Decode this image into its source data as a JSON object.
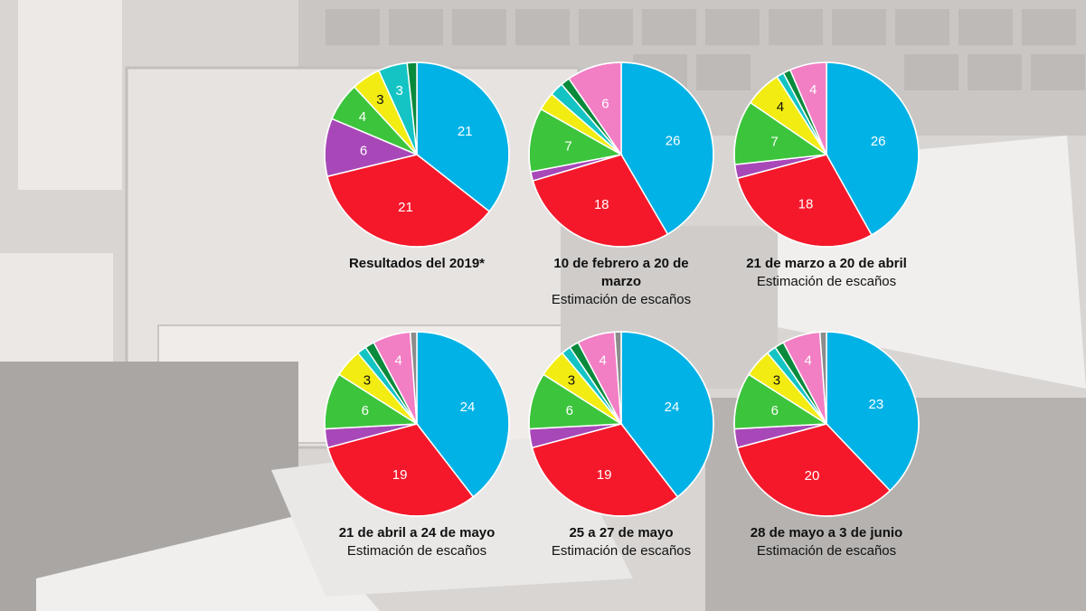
{
  "colors": {
    "cyan": "#00b2e6",
    "red": "#f5182a",
    "purple": "#a848b8",
    "green": "#3cc43c",
    "yellow": "#f2ec12",
    "teal": "#14c4c4",
    "darkgreen": "#0a8a3c",
    "pink": "#f27ec4",
    "gray": "#8c8c8c"
  },
  "chart_data": [
    {
      "type": "pie",
      "title": "Resultados del 2019*",
      "subtitle": "",
      "slices": [
        {
          "value": 21,
          "label": "21",
          "color": "cyan"
        },
        {
          "value": 21,
          "label": "21",
          "color": "red"
        },
        {
          "value": 6,
          "label": "6",
          "color": "purple"
        },
        {
          "value": 4,
          "label": "4",
          "color": "green"
        },
        {
          "value": 3,
          "label": "3",
          "color": "yellow"
        },
        {
          "value": 3,
          "label": "3",
          "color": "teal"
        },
        {
          "value": 1,
          "label": "",
          "color": "darkgreen"
        }
      ]
    },
    {
      "type": "pie",
      "title": "10 de febrero a 20 de marzo",
      "subtitle": "Estimación de escaños",
      "slices": [
        {
          "value": 26,
          "label": "26",
          "color": "cyan"
        },
        {
          "value": 18,
          "label": "18",
          "color": "red"
        },
        {
          "value": 1,
          "label": "",
          "color": "purple"
        },
        {
          "value": 7,
          "label": "7",
          "color": "green"
        },
        {
          "value": 2,
          "label": "",
          "color": "yellow"
        },
        {
          "value": 1.5,
          "label": "",
          "color": "teal"
        },
        {
          "value": 1,
          "label": "",
          "color": "darkgreen"
        },
        {
          "value": 6,
          "label": "6",
          "color": "pink"
        }
      ]
    },
    {
      "type": "pie",
      "title": "21 de marzo a 20 de abril",
      "subtitle": "Estimación de escaños",
      "slices": [
        {
          "value": 26,
          "label": "26",
          "color": "cyan"
        },
        {
          "value": 18,
          "label": "18",
          "color": "red"
        },
        {
          "value": 1.5,
          "label": "",
          "color": "purple"
        },
        {
          "value": 7,
          "label": "7",
          "color": "green"
        },
        {
          "value": 4,
          "label": "4",
          "color": "yellow"
        },
        {
          "value": 0.8,
          "label": "",
          "color": "teal"
        },
        {
          "value": 0.8,
          "label": "",
          "color": "darkgreen"
        },
        {
          "value": 4,
          "label": "4",
          "color": "pink"
        }
      ]
    },
    {
      "type": "pie",
      "title": "21 de abril a 24 de mayo",
      "subtitle": "Estimación de escaños",
      "slices": [
        {
          "value": 24,
          "label": "24",
          "color": "cyan"
        },
        {
          "value": 19,
          "label": "19",
          "color": "red"
        },
        {
          "value": 2,
          "label": "",
          "color": "purple"
        },
        {
          "value": 6,
          "label": "6",
          "color": "green"
        },
        {
          "value": 3,
          "label": "3",
          "color": "yellow"
        },
        {
          "value": 1,
          "label": "",
          "color": "teal"
        },
        {
          "value": 1,
          "label": "",
          "color": "darkgreen"
        },
        {
          "value": 4,
          "label": "4",
          "color": "pink"
        },
        {
          "value": 0.7,
          "label": "",
          "color": "gray"
        }
      ]
    },
    {
      "type": "pie",
      "title": "25 a 27 de mayo",
      "subtitle": "Estimación de escaños",
      "slices": [
        {
          "value": 24,
          "label": "24",
          "color": "cyan"
        },
        {
          "value": 19,
          "label": "19",
          "color": "red"
        },
        {
          "value": 2,
          "label": "",
          "color": "purple"
        },
        {
          "value": 6,
          "label": "6",
          "color": "green"
        },
        {
          "value": 3,
          "label": "3",
          "color": "yellow"
        },
        {
          "value": 1,
          "label": "",
          "color": "teal"
        },
        {
          "value": 1,
          "label": "",
          "color": "darkgreen"
        },
        {
          "value": 4,
          "label": "4",
          "color": "pink"
        },
        {
          "value": 0.7,
          "label": "",
          "color": "gray"
        }
      ]
    },
    {
      "type": "pie",
      "title": "28 de mayo a 3 de junio",
      "subtitle": "Estimación de escaños",
      "slices": [
        {
          "value": 23,
          "label": "23",
          "color": "cyan"
        },
        {
          "value": 20,
          "label": "20",
          "color": "red"
        },
        {
          "value": 2,
          "label": "",
          "color": "purple"
        },
        {
          "value": 6,
          "label": "6",
          "color": "green"
        },
        {
          "value": 3,
          "label": "3",
          "color": "yellow"
        },
        {
          "value": 1,
          "label": "",
          "color": "teal"
        },
        {
          "value": 1,
          "label": "",
          "color": "darkgreen"
        },
        {
          "value": 4,
          "label": "4",
          "color": "pink"
        },
        {
          "value": 0.7,
          "label": "",
          "color": "gray"
        }
      ]
    }
  ]
}
